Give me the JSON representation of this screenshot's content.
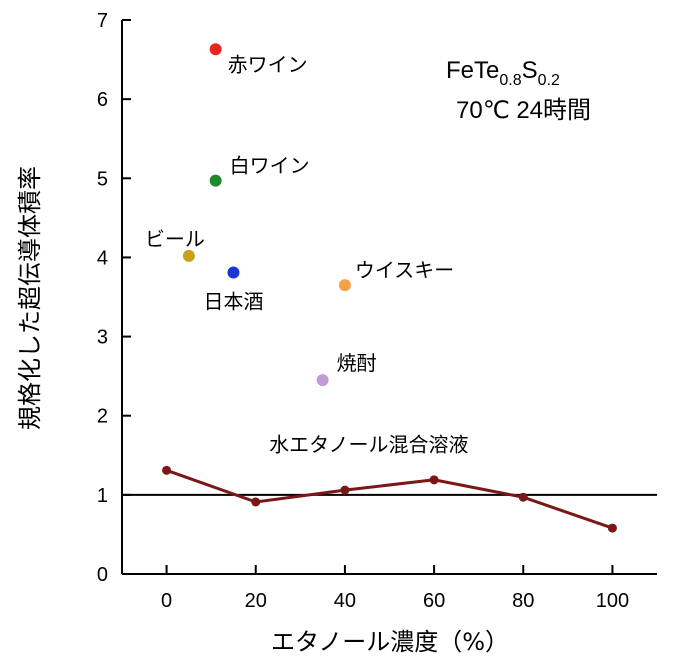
{
  "chart_data": {
    "type": "scatter",
    "xlabel": "エタノール濃度（%）",
    "ylabel": "規格化した超伝導体積率",
    "xlim": [
      -10,
      110
    ],
    "ylim": [
      0,
      7
    ],
    "xticks": [
      0,
      20,
      40,
      60,
      80,
      100
    ],
    "yticks": [
      0,
      1,
      2,
      3,
      4,
      5,
      6,
      7
    ],
    "grid": false,
    "reference_line": 1,
    "annotation": {
      "formula_base1": "FeTe",
      "formula_sub1": "0.8",
      "formula_base2": "S",
      "formula_sub2": "0.2",
      "condition": "70℃ 24時間"
    },
    "points": [
      {
        "label": "赤ワイン",
        "x": 11,
        "y": 6.63,
        "color": "#e8251e"
      },
      {
        "label": "白ワイン",
        "x": 11,
        "y": 4.97,
        "color": "#1f8a2b"
      },
      {
        "label": "ビール",
        "x": 5,
        "y": 4.02,
        "color": "#c9a019"
      },
      {
        "label": "日本酒",
        "x": 15,
        "y": 3.81,
        "color": "#1936d2"
      },
      {
        "label": "ウイスキー",
        "x": 40,
        "y": 3.65,
        "color": "#f7a046"
      },
      {
        "label": "焼酎",
        "x": 35,
        "y": 2.45,
        "color": "#c39ad8"
      }
    ],
    "series": [
      {
        "name": "水エタノール混合溶液",
        "color": "#7a1717",
        "x": [
          0,
          20,
          40,
          60,
          80,
          100
        ],
        "y": [
          1.31,
          0.91,
          1.06,
          1.19,
          0.97,
          0.58
        ]
      }
    ]
  }
}
